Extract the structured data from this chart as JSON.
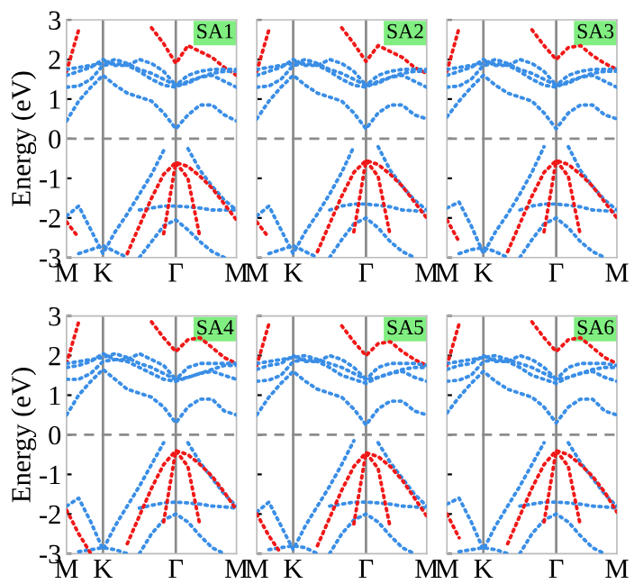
{
  "chart_data": [
    {
      "type": "line",
      "ylabel": "Energy (eV)",
      "annotations": [
        "SA1"
      ],
      "line_style": "dotted",
      "categories": [
        "M",
        null,
        null,
        "K",
        null,
        null,
        null,
        null,
        null,
        "Γ",
        null,
        null,
        null,
        null,
        "M"
      ],
      "ylim": [
        -3,
        3
      ],
      "yticks": [
        -3,
        -2,
        -1,
        0,
        1,
        2,
        3
      ],
      "ref_lines": [
        {
          "axis": "x",
          "value": "K",
          "color": "#8c8c8c",
          "line_style": "solid"
        },
        {
          "axis": "x",
          "value": "Γ",
          "color": "#8c8c8c",
          "line_style": "solid"
        },
        {
          "axis": "y",
          "value": 0,
          "color": "#8c8c8c",
          "line_style": "dashed"
        }
      ],
      "series": [
        {
          "color": "#f01818",
          "values": [
            1.7,
            2.75,
            null,
            null,
            null,
            null,
            null,
            null,
            null,
            null,
            null,
            null,
            null,
            null,
            null
          ]
        },
        {
          "color": "#f01818",
          "values": [
            null,
            null,
            null,
            null,
            null,
            null,
            null,
            2.8,
            2.4,
            1.9,
            2.35,
            2.2,
            2.05,
            1.8,
            1.6
          ]
        },
        {
          "color": "#3a8ee6",
          "values": [
            0.45,
            0.95,
            1.3,
            1.6,
            1.35,
            1.15,
            1.05,
            0.95,
            0.65,
            0.25,
            0.6,
            0.85,
            0.85,
            0.6,
            0.45
          ]
        },
        {
          "color": "#3a8ee6",
          "values": [
            1.3,
            1.33,
            1.5,
            1.85,
            1.9,
            1.85,
            1.7,
            1.5,
            1.35,
            1.3,
            1.45,
            1.55,
            1.6,
            1.45,
            1.3
          ]
        },
        {
          "color": "#3a8ee6",
          "values": [
            1.75,
            1.8,
            1.85,
            1.9,
            2.0,
            1.9,
            1.75,
            1.65,
            1.5,
            1.35,
            1.6,
            1.7,
            1.75,
            1.75,
            1.75
          ]
        },
        {
          "color": "#3a8ee6",
          "values": [
            1.6,
            1.7,
            1.8,
            2.0,
            1.85,
            1.85,
            2.0,
            1.9,
            1.7,
            1.35,
            1.4,
            1.55,
            1.65,
            1.7,
            1.7
          ]
        },
        {
          "color": "#3a8ee6",
          "values": [
            -1.95,
            -1.7,
            -2.3,
            -2.9,
            -2.35,
            -1.9,
            -1.4,
            -0.9,
            -0.3,
            null,
            -0.25,
            -0.8,
            -1.2,
            -1.55,
            -1.8
          ]
        },
        {
          "color": "#3a8ee6",
          "values": [
            null,
            null,
            null,
            null,
            null,
            null,
            -1.8,
            -1.75,
            -1.7,
            -1.7,
            -1.72,
            -1.75,
            -1.8,
            -1.8,
            -1.8
          ]
        },
        {
          "color": "#3a8ee6",
          "values": [
            null,
            null,
            null,
            null,
            null,
            null,
            -3.0,
            -2.6,
            -2.2,
            -2.05,
            -2.3,
            -2.6,
            -2.85,
            -3.0,
            null
          ]
        },
        {
          "color": "#3a8ee6",
          "values": [
            null,
            -2.9,
            -2.8,
            -2.7,
            -2.85,
            -3.0,
            null,
            null,
            null,
            null,
            null,
            null,
            null,
            null,
            null
          ]
        },
        {
          "color": "#f01818",
          "values": [
            -2.1,
            -2.5,
            null,
            null,
            null,
            null,
            null,
            null,
            null,
            null,
            null,
            null,
            null,
            null,
            null
          ]
        },
        {
          "color": "#f01818",
          "values": [
            null,
            null,
            null,
            null,
            null,
            -2.9,
            -2.2,
            -1.5,
            -0.9,
            -0.6,
            -0.7,
            -0.95,
            -1.25,
            -1.65,
            -2.05
          ]
        },
        {
          "color": "#f01818",
          "values": [
            null,
            null,
            null,
            null,
            null,
            null,
            null,
            null,
            -2.4,
            -0.6,
            -1.0,
            -2.5,
            null,
            null,
            null
          ]
        }
      ]
    },
    {
      "type": "line",
      "annotations": [
        "SA2"
      ],
      "line_style": "dotted",
      "tick_labels": "x",
      "categories": [
        "M",
        null,
        null,
        "K",
        null,
        null,
        null,
        null,
        null,
        "Γ",
        null,
        null,
        null,
        null,
        "M"
      ],
      "ylim": [
        -3,
        3
      ],
      "yticks": [
        -3,
        -2,
        -1,
        0,
        1,
        2,
        3
      ],
      "ref_lines": [
        {
          "axis": "x",
          "value": "K",
          "color": "#8c8c8c",
          "line_style": "solid"
        },
        {
          "axis": "x",
          "value": "Γ",
          "color": "#8c8c8c",
          "line_style": "solid"
        },
        {
          "axis": "y",
          "value": 0,
          "color": "#8c8c8c",
          "line_style": "dashed"
        }
      ],
      "series": [
        {
          "color": "#f01818",
          "values": [
            1.7,
            2.75,
            null,
            null,
            null,
            null,
            null,
            null,
            null,
            null,
            null,
            null,
            null,
            null,
            null
          ]
        },
        {
          "color": "#f01818",
          "values": [
            null,
            null,
            null,
            null,
            null,
            null,
            null,
            2.8,
            2.4,
            1.95,
            2.35,
            2.2,
            2.05,
            1.8,
            1.65
          ]
        },
        {
          "color": "#3a8ee6",
          "values": [
            0.5,
            0.95,
            1.3,
            1.6,
            1.35,
            1.15,
            1.05,
            0.95,
            0.65,
            0.25,
            0.65,
            0.85,
            0.85,
            0.6,
            0.5
          ]
        },
        {
          "color": "#3a8ee6",
          "values": [
            1.3,
            1.33,
            1.5,
            1.85,
            1.9,
            1.85,
            1.7,
            1.5,
            1.35,
            1.3,
            1.45,
            1.55,
            1.6,
            1.45,
            1.3
          ]
        },
        {
          "color": "#3a8ee6",
          "values": [
            1.75,
            1.8,
            1.85,
            1.9,
            2.0,
            1.9,
            1.75,
            1.65,
            1.5,
            1.35,
            1.6,
            1.7,
            1.75,
            1.75,
            1.75
          ]
        },
        {
          "color": "#3a8ee6",
          "values": [
            1.6,
            1.7,
            1.8,
            2.0,
            1.85,
            1.85,
            2.0,
            1.9,
            1.7,
            1.35,
            1.4,
            1.55,
            1.65,
            1.7,
            1.7
          ]
        },
        {
          "color": "#3a8ee6",
          "values": [
            -1.95,
            -1.7,
            -2.3,
            -2.9,
            -2.35,
            -1.9,
            -1.4,
            -0.85,
            -0.2,
            null,
            -0.2,
            -0.8,
            -1.2,
            -1.55,
            -1.8
          ]
        },
        {
          "color": "#3a8ee6",
          "values": [
            null,
            null,
            null,
            null,
            null,
            null,
            -1.8,
            -1.7,
            -1.65,
            -1.65,
            -1.68,
            -1.72,
            -1.8,
            -1.82,
            -1.85
          ]
        },
        {
          "color": "#3a8ee6",
          "values": [
            null,
            null,
            null,
            null,
            null,
            null,
            -3.0,
            -2.55,
            -2.15,
            -2.0,
            -2.25,
            -2.6,
            -2.85,
            -3.0,
            null
          ]
        },
        {
          "color": "#3a8ee6",
          "values": [
            null,
            -2.9,
            -2.8,
            -2.7,
            -2.85,
            -3.0,
            null,
            null,
            null,
            null,
            null,
            null,
            null,
            null,
            null
          ]
        },
        {
          "color": "#f01818",
          "values": [
            -2.1,
            -2.5,
            null,
            null,
            null,
            null,
            null,
            null,
            null,
            null,
            null,
            null,
            null,
            null,
            null
          ]
        },
        {
          "color": "#f01818",
          "values": [
            null,
            null,
            null,
            null,
            null,
            -2.85,
            -2.15,
            -1.45,
            -0.85,
            -0.55,
            -0.65,
            -0.9,
            -1.2,
            -1.6,
            -2.0
          ]
        },
        {
          "color": "#f01818",
          "values": [
            null,
            null,
            null,
            null,
            null,
            null,
            null,
            null,
            -2.35,
            -0.55,
            -0.95,
            -2.45,
            null,
            null,
            null
          ]
        }
      ]
    },
    {
      "type": "line",
      "annotations": [
        "SA3"
      ],
      "line_style": "dotted",
      "tick_labels": "x",
      "categories": [
        "M",
        null,
        null,
        "K",
        null,
        null,
        null,
        null,
        null,
        "Γ",
        null,
        null,
        null,
        null,
        "M"
      ],
      "ylim": [
        -3,
        3
      ],
      "yticks": [
        -3,
        -2,
        -1,
        0,
        1,
        2,
        3
      ],
      "ref_lines": [
        {
          "axis": "x",
          "value": "K",
          "color": "#8c8c8c",
          "line_style": "solid"
        },
        {
          "axis": "x",
          "value": "Γ",
          "color": "#8c8c8c",
          "line_style": "solid"
        },
        {
          "axis": "y",
          "value": 0,
          "color": "#8c8c8c",
          "line_style": "dashed"
        }
      ],
      "series": [
        {
          "color": "#f01818",
          "values": [
            1.7,
            2.8,
            null,
            null,
            null,
            null,
            null,
            null,
            null,
            null,
            null,
            null,
            null,
            null,
            null
          ]
        },
        {
          "color": "#f01818",
          "values": [
            null,
            null,
            null,
            null,
            null,
            null,
            null,
            2.75,
            2.35,
            2.0,
            2.3,
            2.35,
            2.1,
            1.9,
            1.75
          ]
        },
        {
          "color": "#3a8ee6",
          "values": [
            0.55,
            0.95,
            1.3,
            1.6,
            1.35,
            1.15,
            1.05,
            0.95,
            0.65,
            0.25,
            0.65,
            0.85,
            0.85,
            0.6,
            0.5
          ]
        },
        {
          "color": "#3a8ee6",
          "values": [
            1.3,
            1.33,
            1.5,
            1.85,
            1.9,
            1.85,
            1.7,
            1.5,
            1.35,
            1.3,
            1.45,
            1.55,
            1.6,
            1.45,
            1.3
          ]
        },
        {
          "color": "#3a8ee6",
          "values": [
            1.75,
            1.8,
            1.85,
            1.9,
            2.0,
            1.9,
            1.75,
            1.65,
            1.5,
            1.35,
            1.6,
            1.7,
            1.75,
            1.75,
            1.75
          ]
        },
        {
          "color": "#3a8ee6",
          "values": [
            1.6,
            1.7,
            1.8,
            2.0,
            1.85,
            1.85,
            2.0,
            1.9,
            1.7,
            1.35,
            1.4,
            1.55,
            1.65,
            1.7,
            1.7
          ]
        },
        {
          "color": "#3a8ee6",
          "values": [
            -1.75,
            -1.6,
            -2.2,
            -2.9,
            -2.35,
            -1.9,
            -1.4,
            -0.85,
            -0.2,
            null,
            -0.2,
            -0.8,
            -1.2,
            -1.55,
            -1.8
          ]
        },
        {
          "color": "#3a8ee6",
          "values": [
            null,
            null,
            null,
            null,
            null,
            null,
            -1.8,
            -1.7,
            -1.65,
            -1.65,
            -1.68,
            -1.72,
            -1.8,
            -1.82,
            -1.85
          ]
        },
        {
          "color": "#3a8ee6",
          "values": [
            null,
            null,
            null,
            null,
            null,
            null,
            -3.0,
            -2.55,
            -2.15,
            -2.0,
            -2.25,
            -2.6,
            -2.85,
            -3.0,
            null
          ]
        },
        {
          "color": "#3a8ee6",
          "values": [
            null,
            -2.9,
            -2.8,
            -2.75,
            -2.85,
            -3.0,
            null,
            null,
            null,
            null,
            null,
            null,
            null,
            null,
            null
          ]
        },
        {
          "color": "#f01818",
          "values": [
            -2.05,
            -2.6,
            null,
            null,
            null,
            null,
            null,
            null,
            null,
            null,
            null,
            null,
            null,
            null,
            null
          ]
        },
        {
          "color": "#f01818",
          "values": [
            null,
            null,
            null,
            null,
            null,
            -2.85,
            -2.15,
            -1.45,
            -0.85,
            -0.55,
            -0.65,
            -0.9,
            -1.2,
            -1.6,
            -2.0
          ]
        },
        {
          "color": "#f01818",
          "values": [
            null,
            null,
            null,
            null,
            null,
            null,
            null,
            null,
            -2.35,
            -0.55,
            -0.95,
            -2.45,
            null,
            null,
            null
          ]
        }
      ]
    },
    {
      "type": "line",
      "ylabel": "Energy (eV)",
      "annotations": [
        "SA4"
      ],
      "line_style": "dotted",
      "categories": [
        "M",
        null,
        null,
        "K",
        null,
        null,
        null,
        null,
        null,
        "Γ",
        null,
        null,
        null,
        null,
        "M"
      ],
      "ylim": [
        -3,
        3
      ],
      "yticks": [
        -3,
        -2,
        -1,
        0,
        1,
        2,
        3
      ],
      "ref_lines": [
        {
          "axis": "x",
          "value": "K",
          "color": "#8c8c8c",
          "line_style": "solid"
        },
        {
          "axis": "x",
          "value": "Γ",
          "color": "#8c8c8c",
          "line_style": "solid"
        },
        {
          "axis": "y",
          "value": 0,
          "color": "#8c8c8c",
          "line_style": "dashed"
        }
      ],
      "series": [
        {
          "color": "#f01818",
          "values": [
            1.8,
            2.85,
            null,
            null,
            null,
            null,
            null,
            null,
            null,
            null,
            null,
            null,
            null,
            null,
            null
          ]
        },
        {
          "color": "#f01818",
          "values": [
            null,
            null,
            null,
            null,
            null,
            null,
            null,
            2.85,
            2.45,
            2.1,
            2.4,
            2.45,
            2.2,
            1.95,
            1.8
          ]
        },
        {
          "color": "#3a8ee6",
          "values": [
            0.5,
            1.0,
            1.35,
            1.65,
            1.4,
            1.15,
            1.05,
            0.95,
            0.7,
            0.3,
            0.7,
            0.9,
            0.9,
            0.6,
            0.5
          ]
        },
        {
          "color": "#3a8ee6",
          "values": [
            1.4,
            1.4,
            1.55,
            1.85,
            1.9,
            1.85,
            1.7,
            1.55,
            1.4,
            1.35,
            1.45,
            1.55,
            1.6,
            1.5,
            1.4
          ]
        },
        {
          "color": "#3a8ee6",
          "values": [
            1.8,
            1.85,
            1.9,
            1.95,
            2.05,
            1.95,
            1.8,
            1.7,
            1.55,
            1.4,
            1.7,
            1.8,
            1.8,
            1.8,
            1.8
          ]
        },
        {
          "color": "#3a8ee6",
          "values": [
            1.7,
            1.75,
            1.85,
            2.05,
            1.9,
            1.9,
            2.05,
            1.9,
            1.75,
            1.4,
            1.45,
            1.55,
            1.65,
            1.75,
            1.75
          ]
        },
        {
          "color": "#3a8ee6",
          "values": [
            -1.8,
            -1.6,
            -2.2,
            -2.9,
            -2.3,
            -1.8,
            -1.3,
            -0.75,
            -0.2,
            null,
            -0.2,
            -0.7,
            -1.1,
            -1.5,
            -1.8
          ]
        },
        {
          "color": "#3a8ee6",
          "values": [
            null,
            null,
            null,
            null,
            null,
            null,
            -1.85,
            -1.78,
            -1.72,
            -1.7,
            -1.72,
            -1.75,
            -1.8,
            -1.82,
            -1.85
          ]
        },
        {
          "color": "#3a8ee6",
          "values": [
            null,
            null,
            null,
            null,
            null,
            null,
            -3.0,
            -2.5,
            -2.15,
            -2.0,
            -2.2,
            -2.55,
            -2.85,
            -3.0,
            null
          ]
        },
        {
          "color": "#3a8ee6",
          "values": [
            null,
            -2.95,
            -2.9,
            -2.85,
            -2.9,
            -3.0,
            null,
            null,
            null,
            null,
            null,
            null,
            null,
            null,
            null
          ]
        },
        {
          "color": "#f01818",
          "values": [
            -1.9,
            -2.5,
            -3.0,
            null,
            null,
            null,
            null,
            null,
            null,
            null,
            null,
            null,
            null,
            null,
            null
          ]
        },
        {
          "color": "#f01818",
          "values": [
            null,
            null,
            null,
            null,
            null,
            -2.75,
            -2.05,
            -1.35,
            -0.75,
            -0.4,
            -0.5,
            -0.75,
            -1.05,
            -1.45,
            -1.9
          ]
        },
        {
          "color": "#f01818",
          "values": [
            null,
            null,
            null,
            null,
            null,
            null,
            null,
            null,
            -2.2,
            -0.4,
            -0.8,
            -2.3,
            null,
            null,
            null
          ]
        }
      ]
    },
    {
      "type": "line",
      "annotations": [
        "SA5"
      ],
      "line_style": "dotted",
      "tick_labels": "x",
      "categories": [
        "M",
        null,
        null,
        "K",
        null,
        null,
        null,
        null,
        null,
        "Γ",
        null,
        null,
        null,
        null,
        "M"
      ],
      "ylim": [
        -3,
        3
      ],
      "yticks": [
        -3,
        -2,
        -1,
        0,
        1,
        2,
        3
      ],
      "ref_lines": [
        {
          "axis": "x",
          "value": "K",
          "color": "#8c8c8c",
          "line_style": "solid"
        },
        {
          "axis": "x",
          "value": "Γ",
          "color": "#8c8c8c",
          "line_style": "solid"
        },
        {
          "axis": "y",
          "value": 0,
          "color": "#8c8c8c",
          "line_style": "dashed"
        }
      ],
      "series": [
        {
          "color": "#f01818",
          "values": [
            1.75,
            2.8,
            null,
            null,
            null,
            null,
            null,
            null,
            null,
            null,
            null,
            null,
            null,
            null,
            null
          ]
        },
        {
          "color": "#f01818",
          "values": [
            null,
            null,
            null,
            null,
            null,
            null,
            null,
            2.75,
            2.35,
            2.0,
            2.3,
            2.35,
            2.1,
            1.9,
            1.75
          ]
        },
        {
          "color": "#3a8ee6",
          "values": [
            0.5,
            0.95,
            1.3,
            1.6,
            1.35,
            1.15,
            1.05,
            0.95,
            0.65,
            0.25,
            0.65,
            0.85,
            0.85,
            0.6,
            0.5
          ]
        },
        {
          "color": "#3a8ee6",
          "values": [
            1.35,
            1.38,
            1.5,
            1.85,
            1.9,
            1.85,
            1.7,
            1.5,
            1.4,
            1.3,
            1.45,
            1.55,
            1.6,
            1.45,
            1.35
          ]
        },
        {
          "color": "#3a8ee6",
          "values": [
            1.8,
            1.85,
            1.9,
            1.95,
            2.0,
            1.9,
            1.8,
            1.7,
            1.55,
            1.4,
            1.7,
            1.8,
            1.8,
            1.8,
            1.75
          ]
        },
        {
          "color": "#3a8ee6",
          "values": [
            1.65,
            1.75,
            1.8,
            2.0,
            1.85,
            1.85,
            2.0,
            1.9,
            1.7,
            1.4,
            1.45,
            1.55,
            1.65,
            1.7,
            1.7
          ]
        },
        {
          "color": "#3a8ee6",
          "values": [
            -1.95,
            -1.7,
            -2.3,
            -2.9,
            -2.3,
            -1.8,
            -1.3,
            -0.75,
            -0.15,
            null,
            -0.2,
            -0.7,
            -1.1,
            -1.5,
            -1.8
          ]
        },
        {
          "color": "#3a8ee6",
          "values": [
            null,
            null,
            null,
            null,
            null,
            null,
            -1.8,
            -1.75,
            -1.7,
            -1.7,
            -1.72,
            -1.75,
            -1.8,
            -1.82,
            -1.85
          ]
        },
        {
          "color": "#3a8ee6",
          "values": [
            null,
            null,
            null,
            null,
            null,
            null,
            -3.0,
            -2.5,
            -2.15,
            -2.0,
            -2.2,
            -2.55,
            -2.85,
            -3.0,
            null
          ]
        },
        {
          "color": "#3a8ee6",
          "values": [
            null,
            -2.9,
            -2.85,
            -2.8,
            -2.85,
            -3.0,
            null,
            null,
            null,
            null,
            null,
            null,
            null,
            null,
            null
          ]
        },
        {
          "color": "#f01818",
          "values": [
            -2.0,
            -2.55,
            -3.0,
            null,
            null,
            null,
            null,
            null,
            null,
            null,
            null,
            null,
            null,
            null,
            null
          ]
        },
        {
          "color": "#f01818",
          "values": [
            null,
            null,
            null,
            null,
            null,
            -2.8,
            -2.1,
            -1.4,
            -0.8,
            -0.45,
            -0.55,
            -0.8,
            -1.15,
            -1.6,
            -2.05
          ]
        },
        {
          "color": "#f01818",
          "values": [
            null,
            null,
            null,
            null,
            null,
            null,
            null,
            null,
            -2.25,
            -0.45,
            -0.85,
            -2.35,
            null,
            null,
            null
          ]
        }
      ]
    },
    {
      "type": "line",
      "annotations": [
        "SA6"
      ],
      "line_style": "dotted",
      "tick_labels": "x",
      "categories": [
        "M",
        null,
        null,
        "K",
        null,
        null,
        null,
        null,
        null,
        "Γ",
        null,
        null,
        null,
        null,
        "M"
      ],
      "ylim": [
        -3,
        3
      ],
      "yticks": [
        -3,
        -2,
        -1,
        0,
        1,
        2,
        3
      ],
      "ref_lines": [
        {
          "axis": "x",
          "value": "K",
          "color": "#8c8c8c",
          "line_style": "solid"
        },
        {
          "axis": "x",
          "value": "Γ",
          "color": "#8c8c8c",
          "line_style": "solid"
        },
        {
          "axis": "y",
          "value": 0,
          "color": "#8c8c8c",
          "line_style": "dashed"
        }
      ],
      "series": [
        {
          "color": "#f01818",
          "values": [
            1.75,
            2.8,
            null,
            null,
            null,
            null,
            null,
            null,
            null,
            null,
            null,
            null,
            null,
            null,
            null
          ]
        },
        {
          "color": "#f01818",
          "values": [
            null,
            null,
            null,
            null,
            null,
            null,
            null,
            2.85,
            2.45,
            2.1,
            2.4,
            2.45,
            2.2,
            1.95,
            1.8
          ]
        },
        {
          "color": "#3a8ee6",
          "values": [
            0.55,
            0.95,
            1.3,
            1.6,
            1.35,
            1.15,
            1.05,
            0.95,
            0.7,
            0.3,
            0.7,
            0.9,
            0.9,
            0.6,
            0.5
          ]
        },
        {
          "color": "#3a8ee6",
          "values": [
            1.35,
            1.38,
            1.5,
            1.85,
            1.9,
            1.85,
            1.7,
            1.5,
            1.4,
            1.3,
            1.45,
            1.55,
            1.6,
            1.45,
            1.35
          ]
        },
        {
          "color": "#3a8ee6",
          "values": [
            1.8,
            1.85,
            1.9,
            1.95,
            2.0,
            1.9,
            1.8,
            1.7,
            1.55,
            1.4,
            1.7,
            1.8,
            1.8,
            1.8,
            1.75
          ]
        },
        {
          "color": "#3a8ee6",
          "values": [
            1.65,
            1.75,
            1.8,
            2.0,
            1.85,
            1.85,
            2.0,
            1.9,
            1.7,
            1.4,
            1.45,
            1.55,
            1.65,
            1.7,
            1.7
          ]
        },
        {
          "color": "#3a8ee6",
          "values": [
            -1.75,
            -1.6,
            -2.2,
            -2.9,
            -2.3,
            -1.8,
            -1.3,
            -0.75,
            -0.2,
            null,
            -0.2,
            -0.7,
            -1.1,
            -1.5,
            -1.8
          ]
        },
        {
          "color": "#3a8ee6",
          "values": [
            null,
            null,
            null,
            null,
            null,
            null,
            -1.8,
            -1.75,
            -1.7,
            -1.7,
            -1.72,
            -1.75,
            -1.8,
            -1.82,
            -1.85
          ]
        },
        {
          "color": "#3a8ee6",
          "values": [
            null,
            null,
            null,
            null,
            null,
            null,
            -3.0,
            -2.5,
            -2.15,
            -2.0,
            -2.2,
            -2.55,
            -2.85,
            -3.0,
            null
          ]
        },
        {
          "color": "#3a8ee6",
          "values": [
            null,
            -2.95,
            -2.9,
            -2.85,
            -2.9,
            -3.0,
            null,
            null,
            null,
            null,
            null,
            null,
            null,
            null,
            null
          ]
        },
        {
          "color": "#f01818",
          "values": [
            -2.0,
            -2.6,
            null,
            null,
            null,
            null,
            null,
            null,
            null,
            null,
            null,
            null,
            null,
            null,
            null
          ]
        },
        {
          "color": "#f01818",
          "values": [
            null,
            null,
            null,
            null,
            null,
            -2.75,
            -2.05,
            -1.35,
            -0.75,
            -0.4,
            -0.5,
            -0.75,
            -1.05,
            -1.45,
            -1.95
          ]
        },
        {
          "color": "#f01818",
          "values": [
            null,
            null,
            null,
            null,
            null,
            null,
            null,
            null,
            -2.2,
            -0.4,
            -0.8,
            -2.3,
            null,
            null,
            null
          ]
        }
      ]
    }
  ]
}
